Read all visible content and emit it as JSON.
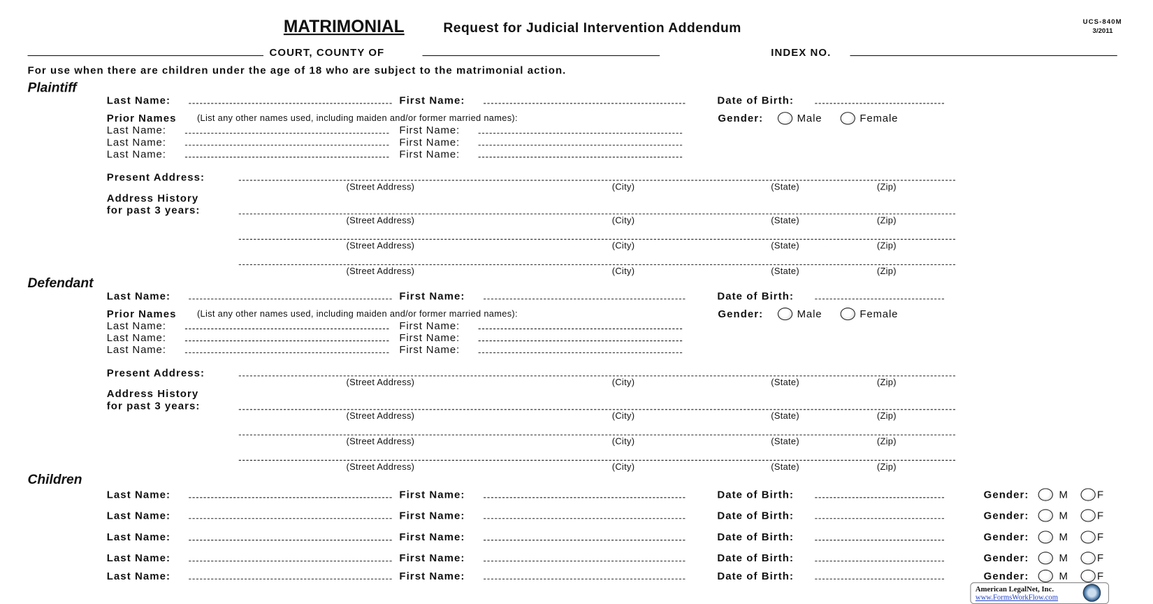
{
  "header": {
    "title_strong": "MATRIMONIAL",
    "title_rest": "Request for Judicial Intervention Addendum",
    "form_code": "UCS-840M",
    "form_date": "3/2011",
    "court_label": "COURT, COUNTY OF",
    "index_label": "INDEX NO.",
    "instructions": "For use when there are children under the age of 18 who are subject to the matrimonial action."
  },
  "labels": {
    "last_name": "Last Name:",
    "first_name": "First Name:",
    "dob": "Date of Birth:",
    "prior_names": "Prior Names",
    "prior_names_note": "(List any other names used, including maiden and/or former married names):",
    "gender": "Gender:",
    "male": "Male",
    "female": "Female",
    "present_address": "Present Address:",
    "address_history_1": "Address History",
    "address_history_2": "for past 3 years:",
    "street": "(Street Address)",
    "city": "(City)",
    "state": "(State)",
    "zip": "(Zip)",
    "m": "M",
    "f": "F"
  },
  "sections": [
    {
      "title": "Plaintiff"
    },
    {
      "title": "Defendant"
    }
  ],
  "children": {
    "title": "Children",
    "rows": 5
  },
  "footer": {
    "logo_name": "American LegalNet, Inc.",
    "logo_url": "www.FormsWorkFlow.com"
  }
}
